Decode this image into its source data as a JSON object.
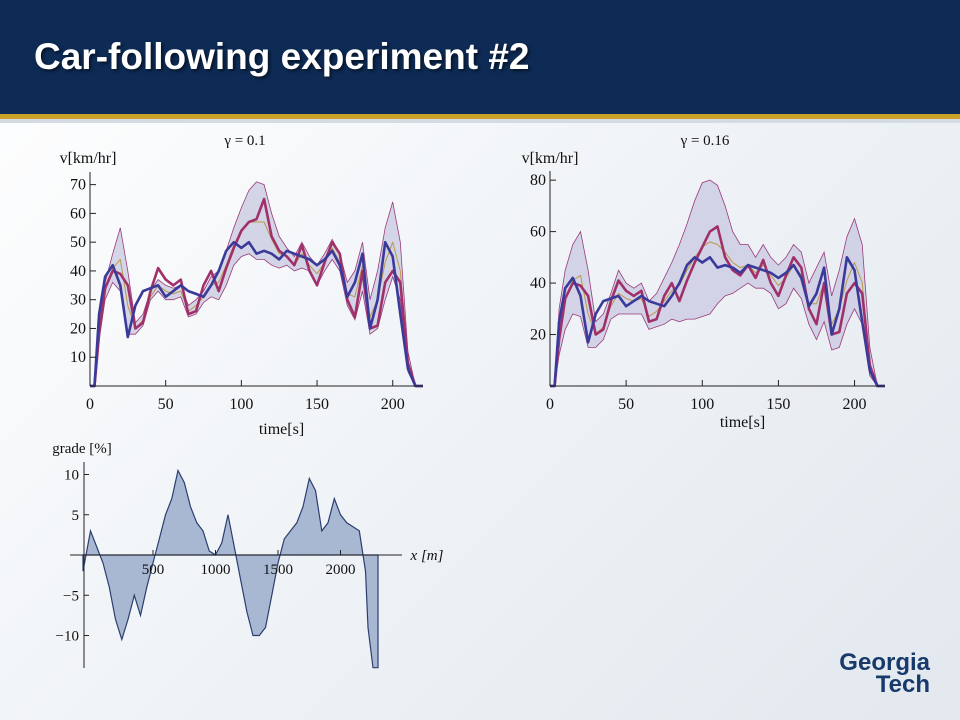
{
  "slide": {
    "title": "Car-following experiment #2",
    "colors": {
      "header": "#0e2b55",
      "gold": "#c9a227",
      "blue": "#3a3a9a",
      "magenta": "#a0306a",
      "band": "#c8c8e0"
    }
  },
  "logo": {
    "line1": "Georgia",
    "line2": "Tech"
  },
  "chart_data": [
    {
      "type": "line",
      "panel_label": "γ = 0.1",
      "ylabel": "v[km/hr]",
      "xlabel": "time[s]",
      "xlim": [
        0,
        220
      ],
      "ylim": [
        0,
        73
      ],
      "xticks": [
        0,
        50,
        100,
        150,
        200
      ],
      "yticks": [
        10,
        20,
        30,
        40,
        50,
        60,
        70
      ],
      "x": [
        0,
        3,
        6,
        10,
        15,
        20,
        25,
        30,
        35,
        40,
        45,
        50,
        55,
        60,
        65,
        70,
        75,
        80,
        85,
        90,
        95,
        100,
        105,
        110,
        115,
        120,
        125,
        130,
        135,
        140,
        145,
        150,
        155,
        160,
        165,
        170,
        175,
        180,
        185,
        190,
        195,
        200,
        205,
        210,
        215,
        220
      ],
      "series": [
        {
          "name": "",
          "values": [
            0,
            0,
            25,
            38,
            42,
            35,
            17,
            28,
            33,
            34,
            35,
            31,
            33,
            35,
            33,
            32,
            31,
            35,
            40,
            47,
            50,
            48,
            50,
            46,
            47,
            46,
            44,
            47,
            46,
            45,
            44,
            42,
            44,
            47,
            42,
            31,
            36,
            46,
            20,
            30,
            50,
            45,
            25,
            6,
            0,
            0
          ]
        },
        {
          "name": "",
          "values": [
            0,
            0,
            18,
            34,
            40,
            39,
            35,
            20,
            22,
            33,
            41,
            37,
            35,
            37,
            25,
            26,
            35,
            40,
            33,
            41,
            48,
            54,
            57,
            58,
            65,
            52,
            47,
            45,
            42,
            49,
            40,
            35,
            43,
            50,
            46,
            30,
            24,
            40,
            20,
            21,
            36,
            40,
            36,
            8,
            0,
            0
          ]
        },
        {
          "name": "",
          "values": [
            0,
            0,
            20,
            36,
            46,
            55,
            40,
            22,
            25,
            33,
            37,
            35,
            34,
            35,
            28,
            30,
            33,
            38,
            40,
            47,
            55,
            62,
            68,
            71,
            70,
            60,
            52,
            48,
            45,
            50,
            45,
            42,
            46,
            51,
            46,
            36,
            40,
            50,
            30,
            40,
            55,
            64,
            50,
            12,
            0,
            0
          ]
        },
        {
          "name": "",
          "values": [
            0,
            0,
            16,
            30,
            36,
            33,
            18,
            18,
            21,
            30,
            33,
            30,
            30,
            31,
            24,
            25,
            29,
            31,
            30,
            35,
            42,
            45,
            46,
            44,
            44,
            42,
            41,
            42,
            40,
            41,
            40,
            35,
            40,
            44,
            40,
            28,
            23,
            33,
            18,
            20,
            30,
            38,
            30,
            5,
            0,
            0
          ]
        },
        {
          "name": "",
          "values": [
            0,
            0,
            18,
            33,
            41,
            44,
            28,
            20,
            23,
            31,
            35,
            33,
            32,
            33,
            26,
            28,
            31,
            35,
            36,
            42,
            49,
            54,
            57,
            57,
            57,
            51,
            46,
            45,
            42,
            46,
            42,
            39,
            43,
            48,
            43,
            32,
            31,
            42,
            24,
            30,
            43,
            50,
            40,
            8,
            0,
            0
          ]
        }
      ]
    },
    {
      "type": "line",
      "panel_label": "γ = 0.16",
      "ylabel": "v[km/hr]",
      "xlabel": "time[s]",
      "xlim": [
        0,
        220
      ],
      "ylim": [
        0,
        82
      ],
      "xticks": [
        0,
        50,
        100,
        150,
        200
      ],
      "yticks": [
        20,
        40,
        60,
        80
      ],
      "x": [
        0,
        3,
        6,
        10,
        15,
        20,
        25,
        30,
        35,
        40,
        45,
        50,
        55,
        60,
        65,
        70,
        75,
        80,
        85,
        90,
        95,
        100,
        105,
        110,
        115,
        120,
        125,
        130,
        135,
        140,
        145,
        150,
        155,
        160,
        165,
        170,
        175,
        180,
        185,
        190,
        195,
        200,
        205,
        210,
        215,
        220
      ],
      "series": [
        {
          "name": "",
          "values": [
            0,
            0,
            25,
            38,
            42,
            35,
            17,
            28,
            33,
            34,
            35,
            31,
            33,
            35,
            33,
            32,
            31,
            35,
            40,
            47,
            50,
            48,
            50,
            46,
            47,
            46,
            44,
            47,
            46,
            45,
            44,
            42,
            44,
            47,
            42,
            31,
            36,
            46,
            20,
            30,
            50,
            45,
            25,
            6,
            0,
            0
          ]
        },
        {
          "name": "",
          "values": [
            0,
            0,
            18,
            34,
            40,
            39,
            35,
            20,
            22,
            33,
            41,
            37,
            35,
            37,
            25,
            26,
            35,
            40,
            33,
            41,
            48,
            54,
            60,
            62,
            50,
            45,
            43,
            47,
            42,
            49,
            40,
            35,
            43,
            50,
            46,
            30,
            24,
            40,
            20,
            21,
            36,
            40,
            36,
            8,
            0,
            0
          ]
        },
        {
          "name": "",
          "values": [
            0,
            0,
            30,
            45,
            55,
            60,
            45,
            25,
            28,
            36,
            45,
            40,
            38,
            40,
            33,
            36,
            42,
            48,
            55,
            63,
            72,
            79,
            80,
            78,
            70,
            60,
            55,
            55,
            50,
            55,
            50,
            47,
            50,
            55,
            52,
            40,
            46,
            52,
            35,
            45,
            58,
            65,
            55,
            15,
            0,
            0
          ]
        },
        {
          "name": "",
          "values": [
            0,
            0,
            12,
            22,
            28,
            27,
            15,
            15,
            18,
            26,
            28,
            28,
            28,
            28,
            22,
            23,
            24,
            26,
            25,
            26,
            26,
            27,
            28,
            32,
            35,
            36,
            38,
            40,
            38,
            38,
            36,
            30,
            32,
            38,
            34,
            24,
            18,
            25,
            14,
            15,
            24,
            30,
            24,
            4,
            0,
            0
          ]
        },
        {
          "name": "",
          "values": [
            0,
            0,
            20,
            33,
            41,
            43,
            28,
            20,
            23,
            31,
            36,
            34,
            33,
            34,
            27,
            29,
            33,
            37,
            39,
            45,
            50,
            54,
            56,
            55,
            52,
            48,
            46,
            47,
            44,
            47,
            43,
            39,
            42,
            47,
            43,
            32,
            32,
            40,
            24,
            30,
            41,
            48,
            40,
            9,
            0,
            0
          ]
        }
      ]
    },
    {
      "type": "area",
      "ylabel": "grade [%]",
      "xlabel": "x [m]",
      "xlim": [
        -100,
        2420
      ],
      "ylim": [
        -14,
        11
      ],
      "xticks": [
        500,
        1000,
        1500,
        2000
      ],
      "yticks": [
        -10,
        -5,
        5,
        10
      ],
      "x": [
        -60,
        0,
        50,
        100,
        150,
        200,
        250,
        300,
        350,
        400,
        450,
        500,
        550,
        600,
        650,
        700,
        750,
        800,
        850,
        900,
        950,
        1000,
        1050,
        1100,
        1150,
        1200,
        1250,
        1300,
        1350,
        1400,
        1450,
        1500,
        1550,
        1600,
        1650,
        1700,
        1750,
        1800,
        1850,
        1900,
        1950,
        2000,
        2050,
        2100,
        2150,
        2200,
        2220,
        2260,
        2300
      ],
      "series": [
        {
          "name": "",
          "values": [
            -2,
            3,
            1,
            -1,
            -4,
            -8,
            -10.5,
            -8,
            -5,
            -7.5,
            -4,
            -1,
            2,
            5,
            7,
            10.5,
            9,
            6,
            4,
            3,
            0.5,
            0,
            1.5,
            5,
            1,
            -3,
            -7,
            -10,
            -10,
            -9,
            -5,
            -1,
            2,
            3,
            4,
            6,
            9.5,
            8,
            3,
            4,
            7,
            5,
            4,
            3.5,
            3,
            -2,
            -9,
            -14,
            -14
          ]
        }
      ]
    }
  ]
}
